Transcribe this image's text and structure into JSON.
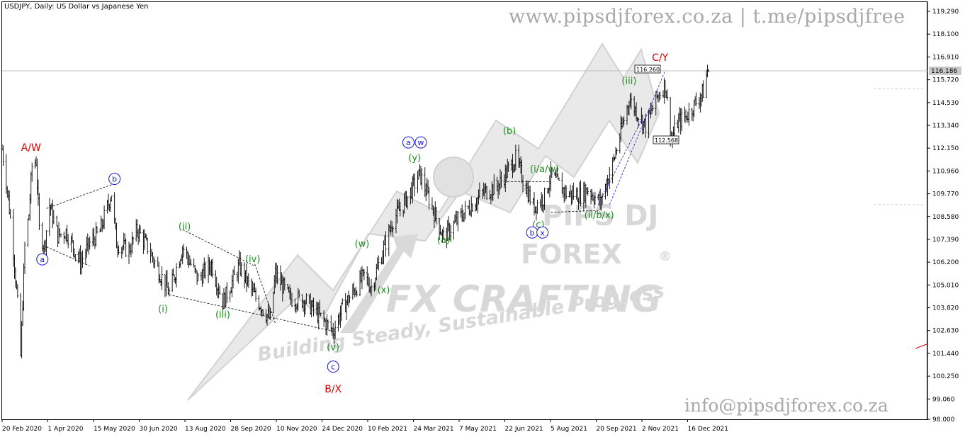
{
  "header": {
    "symbol_line": "USDJPY, Daily:  US Dollar vs Japanese Yen",
    "website": "www.pipsdjforex.co.za | t.me/pipsdjfree",
    "email": "info@pipsdjforex.co.za"
  },
  "watermark": {
    "line1": "PIPS DJ",
    "line2": "FOREX",
    "line3": "FX CRAFTING",
    "tagline": "Building Steady, Sustainable Progress",
    "registered": "®"
  },
  "colors": {
    "candles": "#000000",
    "wave_green": "#1e8c1e",
    "wave_red": "#e00000",
    "wave_blue": "#1414d8",
    "price_line": "#c0c0c0",
    "watermark": "#d6d6d6",
    "header_text": "#a8a8a8"
  },
  "chart_data": {
    "type": "candlestick",
    "symbol": "USDJPY",
    "timeframe": "Daily",
    "ylim": [
      98.0,
      120.0
    ],
    "y_ticks": [
      "119.290",
      "118.100",
      "116.910",
      "115.720",
      "114.530",
      "113.340",
      "112.150",
      "110.960",
      "109.770",
      "108.580",
      "107.390",
      "106.200",
      "105.010",
      "103.820",
      "102.630",
      "101.440",
      "100.250",
      "99.060",
      "98.000"
    ],
    "x_ticks": [
      "20 Feb 2020",
      "1 Apr 2020",
      "15 May 2020",
      "30 Jun 2020",
      "13 Aug 2020",
      "28 Sep 2020",
      "10 Nov 2020",
      "24 Dec 2020",
      "10 Feb 2021",
      "24 Mar 2021",
      "7 May 2021",
      "22 Jun 2021",
      "5 Aug 2021",
      "20 Sep 2021",
      "2 Nov 2021",
      "16 Dec 2021"
    ],
    "current_price": "116.186",
    "marked_high": "116.260",
    "marked_low": "112.568",
    "price_path": [
      {
        "date": "2020-02-20",
        "value": 112.1
      },
      {
        "date": "2020-02-25",
        "value": 110.0
      },
      {
        "date": "2020-03-01",
        "value": 107.5
      },
      {
        "date": "2020-03-06",
        "value": 104.0
      },
      {
        "date": "2020-03-09",
        "value": 101.3
      },
      {
        "date": "2020-03-13",
        "value": 107.0
      },
      {
        "date": "2020-03-17",
        "value": 108.7
      },
      {
        "date": "2020-03-20",
        "value": 111.2
      },
      {
        "date": "2020-03-24",
        "value": 111.5
      },
      {
        "date": "2020-03-27",
        "value": 107.9
      },
      {
        "date": "2020-04-01",
        "value": 107.0
      },
      {
        "date": "2020-04-06",
        "value": 109.2
      },
      {
        "date": "2020-04-14",
        "value": 107.6
      },
      {
        "date": "2020-04-22",
        "value": 107.8
      },
      {
        "date": "2020-05-06",
        "value": 106.2
      },
      {
        "date": "2020-05-15",
        "value": 107.2
      },
      {
        "date": "2020-05-25",
        "value": 107.8
      },
      {
        "date": "2020-06-05",
        "value": 109.8
      },
      {
        "date": "2020-06-10",
        "value": 107.2
      },
      {
        "date": "2020-06-22",
        "value": 106.8
      },
      {
        "date": "2020-06-30",
        "value": 107.9
      },
      {
        "date": "2020-07-10",
        "value": 107.0
      },
      {
        "date": "2020-07-31",
        "value": 104.6
      },
      {
        "date": "2020-08-13",
        "value": 107.0
      },
      {
        "date": "2020-08-28",
        "value": 105.3
      },
      {
        "date": "2020-09-10",
        "value": 106.1
      },
      {
        "date": "2020-09-21",
        "value": 104.1
      },
      {
        "date": "2020-10-07",
        "value": 106.0
      },
      {
        "date": "2020-10-21",
        "value": 104.5
      },
      {
        "date": "2020-11-06",
        "value": 103.2
      },
      {
        "date": "2020-11-11",
        "value": 105.6
      },
      {
        "date": "2020-11-25",
        "value": 104.3
      },
      {
        "date": "2020-12-10",
        "value": 104.2
      },
      {
        "date": "2021-01-06",
        "value": 102.6
      },
      {
        "date": "2021-01-15",
        "value": 103.8
      },
      {
        "date": "2021-02-05",
        "value": 105.5
      },
      {
        "date": "2021-02-12",
        "value": 104.9
      },
      {
        "date": "2021-03-05",
        "value": 108.4
      },
      {
        "date": "2021-03-15",
        "value": 109.2
      },
      {
        "date": "2021-03-31",
        "value": 110.8
      },
      {
        "date": "2021-04-23",
        "value": 107.5
      },
      {
        "date": "2021-05-10",
        "value": 108.6
      },
      {
        "date": "2021-05-31",
        "value": 109.8
      },
      {
        "date": "2021-06-15",
        "value": 110.2
      },
      {
        "date": "2021-07-02",
        "value": 111.6
      },
      {
        "date": "2021-07-19",
        "value": 109.1
      },
      {
        "date": "2021-07-30",
        "value": 109.6
      },
      {
        "date": "2021-08-05",
        "value": 110.7
      },
      {
        "date": "2021-08-20",
        "value": 109.8
      },
      {
        "date": "2021-09-03",
        "value": 109.7
      },
      {
        "date": "2021-09-10",
        "value": 110.0
      },
      {
        "date": "2021-09-22",
        "value": 109.3
      },
      {
        "date": "2021-10-05",
        "value": 111.5
      },
      {
        "date": "2021-10-20",
        "value": 114.7
      },
      {
        "date": "2021-10-29",
        "value": 113.9
      },
      {
        "date": "2021-11-05",
        "value": 113.3
      },
      {
        "date": "2021-11-16",
        "value": 114.8
      },
      {
        "date": "2021-11-24",
        "value": 115.5
      },
      {
        "date": "2021-11-30",
        "value": 112.6
      },
      {
        "date": "2021-12-06",
        "value": 113.5
      },
      {
        "date": "2021-12-14",
        "value": 113.8
      },
      {
        "date": "2021-12-22",
        "value": 114.4
      },
      {
        "date": "2021-12-31",
        "value": 115.1
      },
      {
        "date": "2022-01-04",
        "value": 116.2
      }
    ],
    "annotations": [
      {
        "text": "A/W",
        "date": "2020-03-19",
        "price": 112.0,
        "color": "red",
        "circled": false
      },
      {
        "text": "a",
        "date": "2020-03-30",
        "price": 106.2,
        "color": "blue",
        "circled": true
      },
      {
        "text": "b",
        "date": "2020-06-08",
        "price": 110.4,
        "color": "blue",
        "circled": true
      },
      {
        "text": "(ii)",
        "date": "2020-08-15",
        "price": 107.9,
        "color": "green",
        "circled": false
      },
      {
        "text": "(i)",
        "date": "2020-07-25",
        "price": 103.6,
        "color": "green",
        "circled": false
      },
      {
        "text": "(iii)",
        "date": "2020-09-21",
        "price": 103.3,
        "color": "green",
        "circled": false
      },
      {
        "text": "(iv)",
        "date": "2020-10-20",
        "price": 106.2,
        "color": "green",
        "circled": false
      },
      {
        "text": "(v)",
        "date": "2021-01-06",
        "price": 101.6,
        "color": "green",
        "circled": false
      },
      {
        "text": "c",
        "date": "2021-01-06",
        "price": 100.6,
        "color": "blue",
        "circled": true
      },
      {
        "text": "B/X",
        "date": "2021-01-06",
        "price": 99.4,
        "color": "red",
        "circled": false
      },
      {
        "text": "(w)",
        "date": "2021-02-03",
        "price": 107.0,
        "color": "green",
        "circled": false
      },
      {
        "text": "(x)",
        "date": "2021-02-24",
        "price": 104.6,
        "color": "green",
        "circled": false
      },
      {
        "text": "a",
        "date": "2021-03-20",
        "price": 112.3,
        "color": "blue",
        "circled": true
      },
      {
        "text": "w",
        "date": "2021-04-01",
        "price": 112.3,
        "color": "blue",
        "circled": true
      },
      {
        "text": "(y)",
        "date": "2021-03-26",
        "price": 111.5,
        "color": "green",
        "circled": false
      },
      {
        "text": "(a)",
        "date": "2021-04-23",
        "price": 107.2,
        "color": "green",
        "circled": false
      },
      {
        "text": "(b)",
        "date": "2021-06-26",
        "price": 112.9,
        "color": "green",
        "circled": false
      },
      {
        "text": "(i/a/w)",
        "date": "2021-07-30",
        "price": 110.9,
        "color": "green",
        "circled": false
      },
      {
        "text": "(c)",
        "date": "2021-07-24",
        "price": 108.0,
        "color": "green",
        "circled": false
      },
      {
        "text": "b",
        "date": "2021-07-18",
        "price": 107.6,
        "color": "blue",
        "circled": true
      },
      {
        "text": "x",
        "date": "2021-07-28",
        "price": 107.6,
        "color": "blue",
        "circled": true
      },
      {
        "text": "(ii/b/x)",
        "date": "2021-09-21",
        "price": 108.5,
        "color": "green",
        "circled": false
      },
      {
        "text": "(iii)",
        "date": "2021-10-20",
        "price": 115.5,
        "color": "green",
        "circled": false
      },
      {
        "text": "C/Y",
        "date": "2021-11-19",
        "price": 116.7,
        "color": "red",
        "circled": false
      }
    ]
  }
}
